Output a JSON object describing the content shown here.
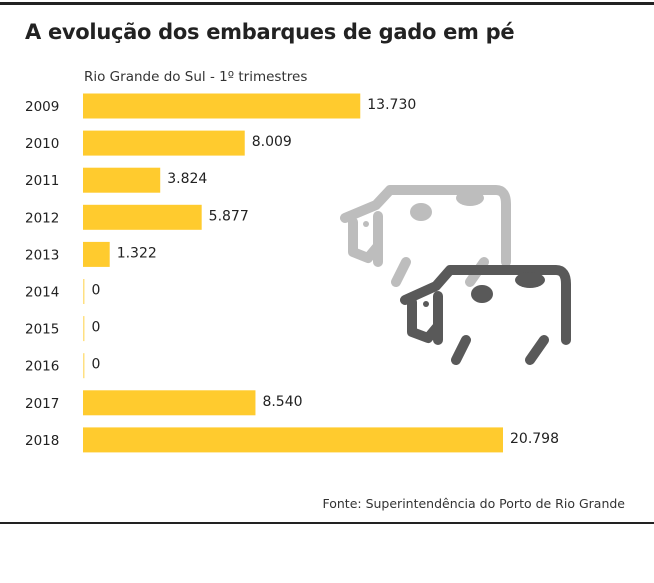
{
  "title": "A evolução dos embarques de gado em pé",
  "source": "Fonte: Superintendência do Porto de Rio Grande",
  "colors": {
    "bar": "#FFCB2E",
    "text": "#222222",
    "cow_light": "#BDBDBD",
    "cow_dark": "#595959"
  },
  "icons": [
    "cow-icon-light",
    "cow-icon-dark"
  ],
  "chart_data": {
    "type": "bar",
    "orientation": "horizontal",
    "title": "A evolução dos embarques de gado em pé",
    "subtitle": "Rio Grande do Sul - 1º trimestres",
    "categories": [
      "2009",
      "2010",
      "2011",
      "2012",
      "2013",
      "2014",
      "2015",
      "2016",
      "2017",
      "2018"
    ],
    "values": [
      13730,
      8009,
      3824,
      5877,
      1322,
      0,
      0,
      0,
      8540,
      20798
    ],
    "value_labels": [
      "13.730",
      "8.009",
      "3.824",
      "5.877",
      "1.322",
      "0",
      "0",
      "0",
      "8.540",
      "20.798"
    ],
    "xlim": [
      0,
      20798
    ],
    "grid": false,
    "legend": "none"
  }
}
